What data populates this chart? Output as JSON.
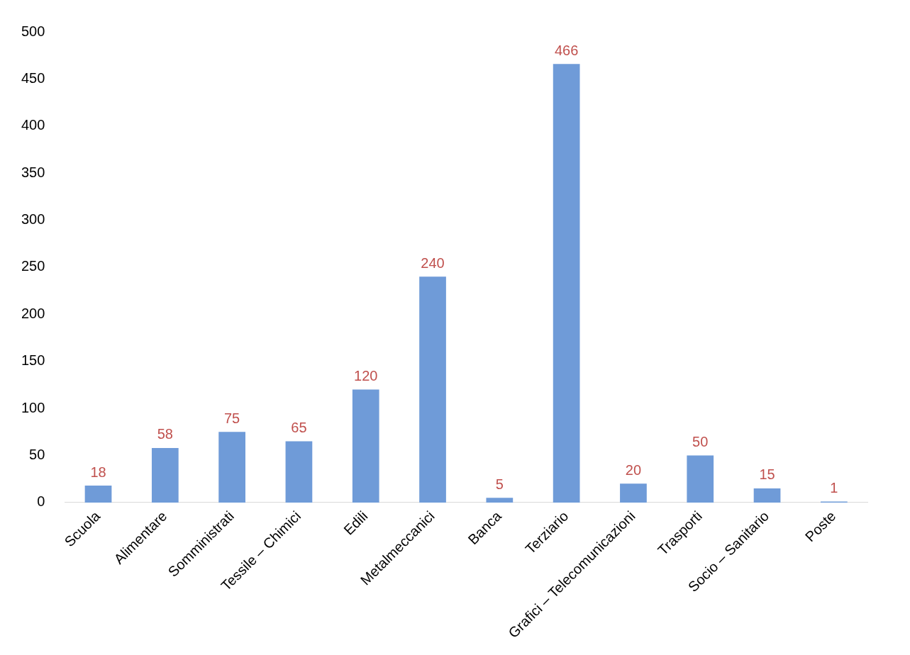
{
  "chart_data": {
    "type": "bar",
    "categories": [
      "Scuola",
      "Alimentare",
      "Somministrati",
      "Tessile – Chimici",
      "Edili",
      "Metalmeccanici",
      "Banca",
      "Terziario",
      "Grafici – Telecomunicazioni",
      "Trasporti",
      "Socio – Sanitario",
      "Poste"
    ],
    "values": [
      18,
      58,
      75,
      65,
      120,
      240,
      5,
      466,
      20,
      50,
      15,
      1
    ],
    "color": "#6f9bd8",
    "ylim": [
      0,
      500
    ],
    "yticks": [
      0,
      50,
      100,
      150,
      200,
      250,
      300,
      350,
      400,
      450,
      500
    ],
    "grid": false,
    "legend": false,
    "data_labels": true
  }
}
